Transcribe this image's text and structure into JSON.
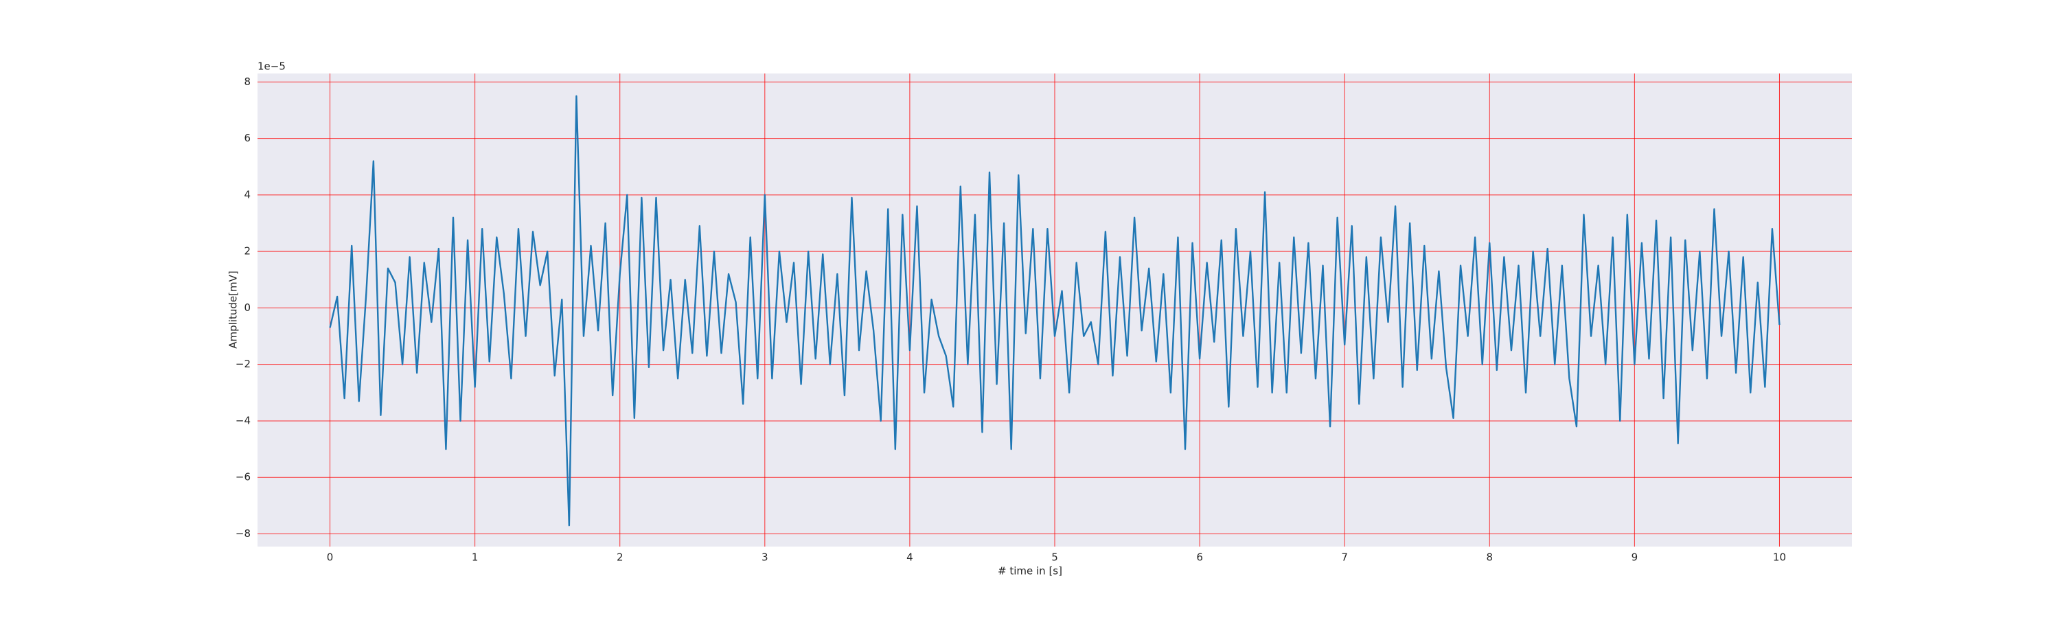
{
  "chart_data": {
    "type": "line",
    "xlabel": "# time in [s]",
    "ylabel": "Amplitude[mV]",
    "y_offset_label": "1e−5",
    "x": [
      0.0,
      0.05,
      0.1,
      0.15,
      0.2,
      0.25,
      0.3,
      0.35,
      0.4,
      0.45,
      0.5,
      0.55,
      0.6,
      0.65,
      0.7,
      0.75,
      0.8,
      0.85,
      0.9,
      0.95,
      1.0,
      1.05,
      1.1,
      1.15,
      1.2,
      1.25,
      1.3,
      1.35,
      1.4,
      1.45,
      1.5,
      1.55,
      1.6,
      1.65,
      1.7,
      1.75,
      1.8,
      1.85,
      1.9,
      1.95,
      2.0,
      2.05,
      2.1,
      2.15,
      2.2,
      2.25,
      2.3,
      2.35,
      2.4,
      2.45,
      2.5,
      2.55,
      2.6,
      2.65,
      2.7,
      2.75,
      2.8,
      2.85,
      2.9,
      2.95,
      3.0,
      3.05,
      3.1,
      3.15,
      3.2,
      3.25,
      3.3,
      3.35,
      3.4,
      3.45,
      3.5,
      3.55,
      3.6,
      3.65,
      3.7,
      3.75,
      3.8,
      3.85,
      3.9,
      3.95,
      4.0,
      4.05,
      4.1,
      4.15,
      4.2,
      4.25,
      4.3,
      4.35,
      4.4,
      4.45,
      4.5,
      4.55,
      4.6,
      4.65,
      4.7,
      4.75,
      4.8,
      4.85,
      4.9,
      4.95,
      5.0,
      5.05,
      5.1,
      5.15,
      5.2,
      5.25,
      5.3,
      5.35,
      5.4,
      5.45,
      5.5,
      5.55,
      5.6,
      5.65,
      5.7,
      5.75,
      5.8,
      5.85,
      5.9,
      5.95,
      6.0,
      6.05,
      6.1,
      6.15,
      6.2,
      6.25,
      6.3,
      6.35,
      6.4,
      6.45,
      6.5,
      6.55,
      6.6,
      6.65,
      6.7,
      6.75,
      6.8,
      6.85,
      6.9,
      6.95,
      7.0,
      7.05,
      7.1,
      7.15,
      7.2,
      7.25,
      7.3,
      7.35,
      7.4,
      7.45,
      7.5,
      7.55,
      7.6,
      7.65,
      7.7,
      7.75,
      7.8,
      7.85,
      7.9,
      7.95,
      8.0,
      8.05,
      8.1,
      8.15,
      8.2,
      8.25,
      8.3,
      8.35,
      8.4,
      8.45,
      8.5,
      8.55,
      8.6,
      8.65,
      8.7,
      8.75,
      8.8,
      8.85,
      8.9,
      8.95,
      9.0,
      9.05,
      9.1,
      9.15,
      9.2,
      9.25,
      9.3,
      9.35,
      9.4,
      9.45,
      9.5,
      9.55,
      9.6,
      9.65,
      9.7,
      9.75,
      9.8,
      9.85,
      9.9,
      9.95,
      10.0
    ],
    "series": [
      {
        "color": "#1f77b4",
        "values": [
          -0.7,
          0.4,
          -3.2,
          2.2,
          -3.3,
          0.5,
          5.2,
          -3.8,
          1.4,
          0.9,
          -2.0,
          1.8,
          -2.3,
          1.6,
          -0.5,
          2.1,
          -5.0,
          3.2,
          -4.0,
          2.4,
          -2.8,
          2.8,
          -1.9,
          2.5,
          0.5,
          -2.5,
          2.8,
          -1.0,
          2.7,
          0.8,
          2.0,
          -2.4,
          0.3,
          -7.7,
          7.5,
          -1.0,
          2.2,
          -0.8,
          3.0,
          -3.1,
          1.2,
          4.0,
          -3.9,
          3.9,
          -2.1,
          3.9,
          -1.5,
          1.0,
          -2.5,
          1.0,
          -1.6,
          2.9,
          -1.7,
          2.0,
          -1.6,
          1.2,
          0.2,
          -3.4,
          2.5,
          -2.5,
          4.0,
          -2.5,
          2.0,
          -0.5,
          1.6,
          -2.7,
          2.0,
          -1.8,
          1.9,
          -2.0,
          1.2,
          -3.1,
          3.9,
          -1.5,
          1.3,
          -0.8,
          -4.0,
          3.5,
          -5.0,
          3.3,
          -1.5,
          3.6,
          -3.0,
          0.3,
          -1.0,
          -1.7,
          -3.5,
          4.3,
          -2.0,
          3.3,
          -4.4,
          4.8,
          -2.7,
          3.0,
          -5.0,
          4.7,
          -0.9,
          2.8,
          -2.5,
          2.8,
          -1.0,
          0.6,
          -3.0,
          1.6,
          -1.0,
          -0.5,
          -2.0,
          2.7,
          -2.4,
          1.8,
          -1.7,
          3.2,
          -0.8,
          1.4,
          -1.9,
          1.2,
          -3.0,
          2.5,
          -5.0,
          2.3,
          -1.8,
          1.6,
          -1.2,
          2.4,
          -3.5,
          2.8,
          -1.0,
          2.0,
          -2.8,
          4.1,
          -3.0,
          1.6,
          -3.0,
          2.5,
          -1.6,
          2.3,
          -2.5,
          1.5,
          -4.2,
          3.2,
          -1.3,
          2.9,
          -3.4,
          1.8,
          -2.5,
          2.5,
          -0.5,
          3.6,
          -2.8,
          3.0,
          -2.2,
          2.2,
          -1.8,
          1.3,
          -2.1,
          -3.9,
          1.5,
          -1.0,
          2.5,
          -2.0,
          2.3,
          -2.2,
          1.8,
          -1.5,
          1.5,
          -3.0,
          2.0,
          -1.0,
          2.1,
          -2.0,
          1.5,
          -2.5,
          -4.2,
          3.3,
          -1.0,
          1.5,
          -2.0,
          2.5,
          -4.0,
          3.3,
          -2.0,
          2.3,
          -1.8,
          3.1,
          -3.2,
          2.5,
          -4.8,
          2.4,
          -1.5,
          2.0,
          -2.5,
          3.5,
          -1.0,
          2.0,
          -2.3,
          1.8,
          -3.0,
          0.9,
          -2.8,
          2.8,
          -0.6
        ]
      }
    ],
    "xlim": [
      -0.5,
      10.5
    ],
    "ylim": [
      -8.45,
      8.3
    ],
    "xticks": [
      0,
      1,
      2,
      3,
      4,
      5,
      6,
      7,
      8,
      9,
      10
    ],
    "yticks": [
      {
        "value": -8,
        "label": "−8"
      },
      {
        "value": -6,
        "label": "−6"
      },
      {
        "value": -4,
        "label": "−4"
      },
      {
        "value": -2,
        "label": "−2"
      },
      0,
      2,
      4,
      6,
      8
    ],
    "grid": true,
    "grid_color": "#ff0000",
    "background": "#eaeaf2"
  }
}
